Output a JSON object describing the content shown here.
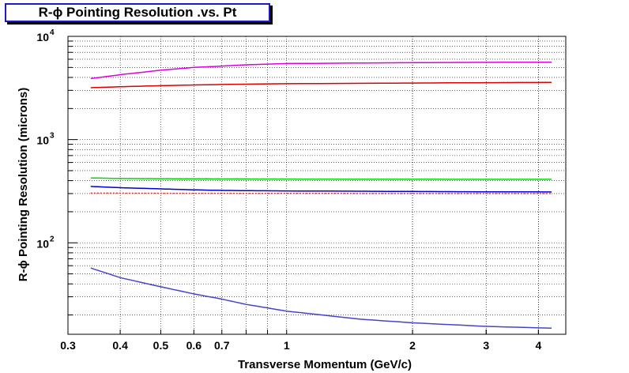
{
  "chart_data": {
    "type": "line",
    "title": "R-ϕ Pointing Resolution .vs. Pt",
    "xlabel": "Transverse Momentum (GeV/c)",
    "ylabel": "R-ϕ Pointing Resolution (microns)",
    "x_scale": "log",
    "y_scale": "log",
    "xlim": [
      0.3,
      4.65
    ],
    "ylim": [
      13,
      10000
    ],
    "grid": true,
    "x_ticks": [
      {
        "value": 0.3,
        "label": "0.3"
      },
      {
        "value": 0.4,
        "label": "0.4"
      },
      {
        "value": 0.5,
        "label": "0.5"
      },
      {
        "value": 0.6,
        "label": "0.6"
      },
      {
        "value": 0.7,
        "label": "0.7"
      },
      {
        "value": 1,
        "label": "1"
      },
      {
        "value": 2,
        "label": "2"
      },
      {
        "value": 3,
        "label": "3"
      },
      {
        "value": 4,
        "label": "4"
      }
    ],
    "y_ticks": [
      {
        "value": 100,
        "base": "10",
        "exp": "2"
      },
      {
        "value": 1000,
        "base": "10",
        "exp": "3"
      },
      {
        "value": 10000,
        "base": "10",
        "exp": "4"
      }
    ],
    "series": [
      {
        "color": "#dd00dd",
        "style": "solid",
        "x": [
          0.34,
          0.4,
          0.5,
          0.6,
          0.7,
          0.8,
          1.0,
          1.5,
          2.0,
          3.0,
          4.3
        ],
        "y": [
          3900,
          4250,
          4700,
          5000,
          5150,
          5300,
          5450,
          5520,
          5560,
          5600,
          5620
        ]
      },
      {
        "color": "#dd0000",
        "style": "solid",
        "x": [
          0.34,
          0.4,
          0.5,
          0.7,
          1.0,
          2.0,
          3.0,
          4.3
        ],
        "y": [
          3180,
          3250,
          3330,
          3420,
          3480,
          3530,
          3560,
          3580
        ]
      },
      {
        "color": "#00dd00",
        "style": "solid",
        "x": [
          0.34,
          0.4,
          0.5,
          0.7,
          1.0,
          2.0,
          3.0,
          4.3
        ],
        "y": [
          425,
          420,
          418,
          416,
          415,
          413,
          412,
          412
        ]
      },
      {
        "color": "#0000cc",
        "style": "solid",
        "x": [
          0.34,
          0.4,
          0.5,
          0.6,
          0.7,
          0.8,
          1.0,
          1.5,
          2.0,
          3.0,
          4.3
        ],
        "y": [
          352,
          342,
          333,
          326,
          322,
          320,
          318,
          316,
          314,
          312,
          311
        ]
      },
      {
        "color": "#dd3333",
        "style": "dotted",
        "x": [
          0.34,
          0.5,
          1.0,
          2.0,
          4.3
        ],
        "y": [
          303,
          302,
          301,
          300,
          300
        ]
      },
      {
        "color": "#4444cc",
        "style": "solid",
        "x": [
          0.34,
          0.4,
          0.5,
          0.6,
          0.7,
          0.8,
          1.0,
          1.5,
          2.0,
          3.0,
          4.3
        ],
        "y": [
          57,
          46,
          37.5,
          32,
          28.5,
          25.3,
          21.8,
          18.2,
          16.8,
          15.5,
          14.9
        ]
      }
    ]
  }
}
